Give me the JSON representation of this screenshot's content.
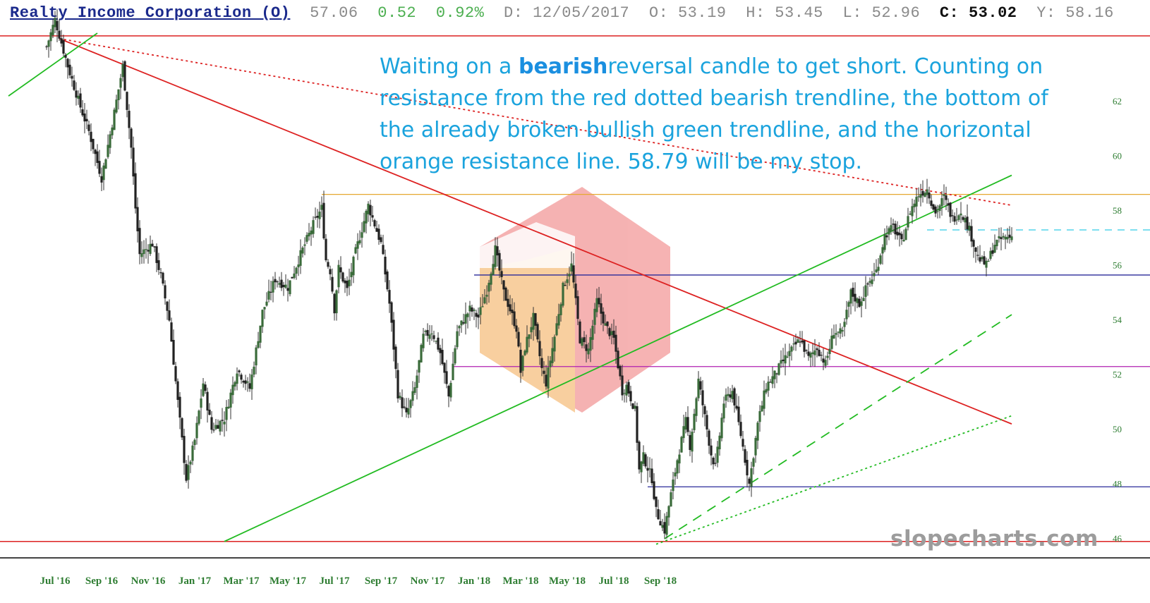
{
  "header": {
    "title": "Realty Income Corporation (O)",
    "price": "57.06",
    "change": "0.52",
    "change_pct": "0.92%",
    "date": "D: 12/05/2017",
    "open": "O: 53.19",
    "high": "H: 53.45",
    "low": "L: 52.96",
    "close": "C: 53.02",
    "y": "Y: 58.16"
  },
  "annotation": {
    "part1": "Waiting on a ",
    "emphasis": "bearish",
    "part2": "reversal candle to get short. Counting on resistance from the red dotted bearish trendline, the bottom of the already broken bullish green trendline, and the horizontal orange resistance line. 58.79 will be my stop."
  },
  "watermark": "slopecharts.com",
  "colors": {
    "up_candle": "#3a6b3a",
    "down_candle": "#222222",
    "wick": "#333333",
    "bearish_trendline": "#dd2222",
    "bullish_trendline": "#22bb22",
    "resistance_orange": "#e6a830",
    "support_blue": "#2a2a99",
    "level_purple": "#b020b0",
    "stop_cyan": "#33cce6",
    "logo_red": "#f08080",
    "logo_orange": "#f5b060"
  },
  "chart_data": {
    "type": "candlestick",
    "title": "Realty Income Corporation (O)",
    "x_ticks": [
      "Jul '16",
      "Sep '16",
      "Nov '16",
      "Jan '17",
      "Mar '17",
      "May '17",
      "Jul '17",
      "Sep '17",
      "Nov '17",
      "Jan '18",
      "Mar '18",
      "May '18",
      "Jul '18",
      "Sep '18"
    ],
    "x_tick_index": [
      2,
      13,
      24,
      35,
      46,
      57,
      68,
      79,
      90,
      101,
      112,
      123,
      134,
      145
    ],
    "y_ticks": [
      46,
      48,
      50,
      52,
      54,
      56,
      58,
      60,
      62
    ],
    "ylim": [
      45.3,
      64.5
    ],
    "n_bars": 158,
    "close_path": [
      [
        0,
        64.0
      ],
      [
        2,
        65.0
      ],
      [
        5,
        63.3
      ],
      [
        8,
        61.8
      ],
      [
        10,
        60.9
      ],
      [
        13,
        59.2
      ],
      [
        16,
        61.6
      ],
      [
        18,
        63.3
      ],
      [
        20,
        60.3
      ],
      [
        21,
        58.1
      ],
      [
        22,
        56.4
      ],
      [
        25,
        56.8
      ],
      [
        27,
        55.6
      ],
      [
        29,
        54.0
      ],
      [
        31,
        51.0
      ],
      [
        33,
        48.2
      ],
      [
        35,
        49.6
      ],
      [
        37,
        51.7
      ],
      [
        39,
        50.0
      ],
      [
        42,
        50.4
      ],
      [
        45,
        52.2
      ],
      [
        48,
        51.5
      ],
      [
        51,
        54.3
      ],
      [
        54,
        55.5
      ],
      [
        57,
        55.2
      ],
      [
        60,
        56.4
      ],
      [
        63,
        57.5
      ],
      [
        65,
        58.1
      ],
      [
        66,
        56.2
      ],
      [
        67,
        55.8
      ],
      [
        68,
        54.4
      ],
      [
        69,
        55.9
      ],
      [
        71,
        55.1
      ],
      [
        73,
        56.5
      ],
      [
        76,
        58.2
      ],
      [
        79,
        56.8
      ],
      [
        81,
        54.6
      ],
      [
        82,
        53.0
      ],
      [
        83,
        51.3
      ],
      [
        85,
        50.5
      ],
      [
        87,
        51.5
      ],
      [
        89,
        53.4
      ],
      [
        91,
        53.6
      ],
      [
        93,
        52.8
      ],
      [
        95,
        51.2
      ],
      [
        97,
        53.6
      ],
      [
        100,
        54.4
      ],
      [
        102,
        54.1
      ],
      [
        104,
        55.1
      ],
      [
        106,
        56.6
      ],
      [
        108,
        55.0
      ],
      [
        109,
        54.6
      ],
      [
        111,
        53.7
      ],
      [
        112,
        52.1
      ],
      [
        113,
        53.0
      ],
      [
        115,
        54.1
      ],
      [
        117,
        52.2
      ],
      [
        118,
        51.7
      ],
      [
        120,
        53.4
      ],
      [
        122,
        55.2
      ],
      [
        124,
        56.0
      ],
      [
        126,
        53.3
      ],
      [
        128,
        52.9
      ],
      [
        130,
        54.7
      ],
      [
        132,
        53.8
      ],
      [
        134,
        53.3
      ],
      [
        136,
        51.4
      ],
      [
        137,
        51.6
      ],
      [
        139,
        50.7
      ],
      [
        140,
        48.5
      ],
      [
        141,
        49.0
      ],
      [
        143,
        48.2
      ],
      [
        144,
        47.0
      ],
      [
        146,
        46.3
      ],
      [
        147,
        47.2
      ],
      [
        149,
        48.9
      ],
      [
        151,
        50.3
      ],
      [
        152,
        49.4
      ],
      [
        154,
        51.8
      ],
      [
        155,
        50.9
      ],
      [
        157,
        49.1
      ],
      [
        158,
        48.6
      ],
      [
        160,
        51.0
      ],
      [
        162,
        51.4
      ],
      [
        164,
        49.8
      ],
      [
        166,
        48.0
      ],
      [
        168,
        50.2
      ],
      [
        170,
        51.6
      ],
      [
        172,
        52.0
      ],
      [
        174,
        52.5
      ],
      [
        176,
        52.9
      ],
      [
        178,
        53.3
      ],
      [
        180,
        52.6
      ],
      [
        182,
        53.0
      ],
      [
        184,
        52.4
      ],
      [
        186,
        53.6
      ],
      [
        188,
        53.5
      ],
      [
        190,
        55.0
      ],
      [
        192,
        54.6
      ],
      [
        194,
        55.3
      ],
      [
        196,
        55.8
      ],
      [
        198,
        57.1
      ],
      [
        200,
        57.4
      ],
      [
        202,
        56.8
      ],
      [
        204,
        58.0
      ],
      [
        206,
        58.6
      ],
      [
        208,
        58.8
      ],
      [
        210,
        57.9
      ],
      [
        212,
        58.5
      ],
      [
        214,
        57.7
      ],
      [
        216,
        58.0
      ],
      [
        218,
        57.3
      ],
      [
        220,
        56.3
      ],
      [
        222,
        56.0
      ],
      [
        224,
        56.8
      ],
      [
        226,
        57.0
      ],
      [
        228,
        57.06
      ]
    ],
    "horizontal_lines": [
      {
        "name": "top red line",
        "y": 64.4,
        "color": "red"
      },
      {
        "name": "orange resistance",
        "y": 58.6,
        "color": "orange"
      },
      {
        "name": "blue support (upper)",
        "y": 55.65,
        "color": "blue"
      },
      {
        "name": "purple level",
        "y": 52.3,
        "color": "purple"
      },
      {
        "name": "blue support (lower)",
        "y": 47.9,
        "color": "blue"
      },
      {
        "name": "bottom red line",
        "y": 45.9,
        "color": "red"
      },
      {
        "name": "cyan dashed (stop zone)",
        "y": 57.3,
        "color": "cyan",
        "style": "dashed"
      }
    ],
    "trendlines": [
      {
        "name": "bearish solid red",
        "from": [
          3,
          64.3
        ],
        "to": [
          228,
          50.2
        ]
      },
      {
        "name": "bearish dotted red",
        "from": [
          3,
          64.3
        ],
        "to": [
          228,
          58.2
        ]
      },
      {
        "name": "bullish green",
        "from": [
          -9,
          62.2
        ],
        "to": [
          12,
          64.5
        ]
      },
      {
        "name": "bullish green (main)",
        "from": [
          42,
          45.9
        ],
        "to": [
          228,
          59.3
        ]
      },
      {
        "name": "bullish green dashed",
        "from": [
          146,
          46.0
        ],
        "to": [
          228,
          54.2
        ]
      },
      {
        "name": "bullish green dotted",
        "from": [
          144,
          45.8
        ],
        "to": [
          228,
          50.5
        ]
      }
    ]
  }
}
